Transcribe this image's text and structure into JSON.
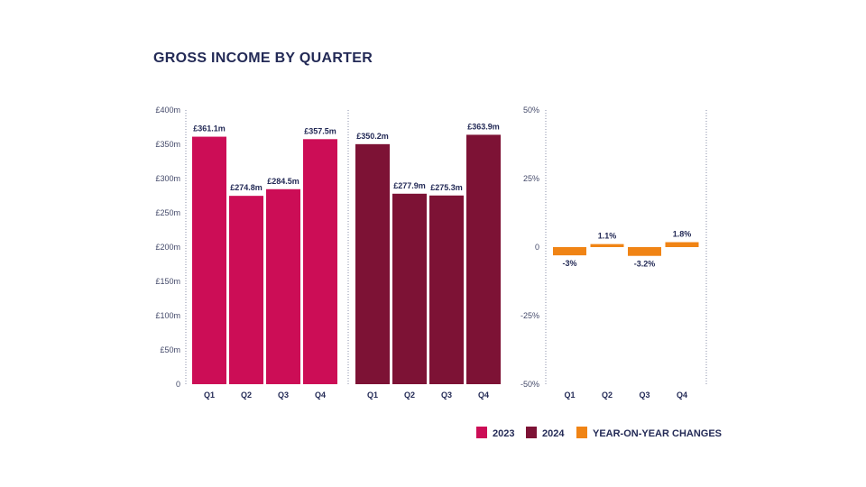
{
  "title": "GROSS INCOME BY QUARTER",
  "colors": {
    "y2023": "#cc0d56",
    "y2024": "#7d1235",
    "yoy": "#f08415",
    "text": "#232a56"
  },
  "chart_data": [
    {
      "type": "bar",
      "categories": [
        "Q1",
        "Q2",
        "Q3",
        "Q4"
      ],
      "series": [
        {
          "name": "2023",
          "values": [
            361.1,
            274.8,
            284.5,
            357.5
          ],
          "labels": [
            "£361.1m",
            "£274.8m",
            "£284.5m",
            "£357.5m"
          ]
        },
        {
          "name": "2024",
          "values": [
            350.2,
            277.9,
            275.3,
            363.9
          ],
          "labels": [
            "£350.2m",
            "£277.9m",
            "£275.3m",
            "£363.9m"
          ]
        }
      ],
      "yticks": [
        "0",
        "£50m",
        "£100m",
        "£150m",
        "£200m",
        "£250m",
        "£300m",
        "£350m",
        "£400m"
      ],
      "ylim": [
        0,
        400
      ]
    },
    {
      "type": "bar",
      "categories": [
        "Q1",
        "Q2",
        "Q3",
        "Q4"
      ],
      "series": [
        {
          "name": "YEAR-ON-YEAR CHANGES",
          "values": [
            -3,
            1.1,
            -3.2,
            1.8
          ],
          "labels": [
            "-3%",
            "1.1%",
            "-3.2%",
            "1.8%"
          ]
        }
      ],
      "yticks": [
        "-50%",
        "-25%",
        "0",
        "25%",
        "50%"
      ],
      "ylim": [
        -50,
        50
      ]
    }
  ],
  "legend": [
    {
      "label": "2023",
      "color": "#cc0d56"
    },
    {
      "label": "2024",
      "color": "#7d1235"
    },
    {
      "label": "YEAR-ON-YEAR CHANGES",
      "color": "#f08415"
    }
  ]
}
